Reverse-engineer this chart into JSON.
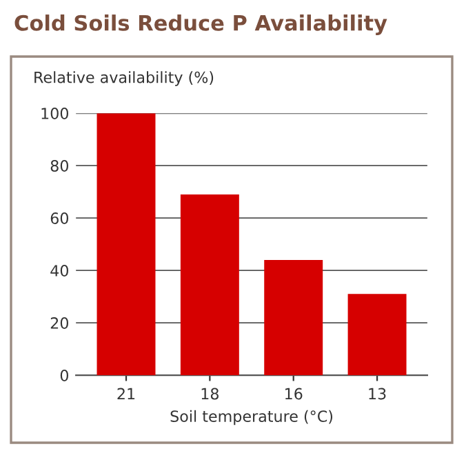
{
  "chart_data": {
    "type": "bar",
    "title": "Cold Soils Reduce P Availability",
    "ylabel": "Relative availability (%)",
    "xlabel": "Soil temperature (°C)",
    "categories": [
      "21",
      "18",
      "16",
      "13"
    ],
    "values": [
      100,
      69,
      44,
      31
    ],
    "color": "#d60000",
    "ylim": [
      0,
      100
    ],
    "yticks": [
      0,
      20,
      40,
      60,
      80,
      100
    ],
    "grid": "y",
    "legend": false
  }
}
